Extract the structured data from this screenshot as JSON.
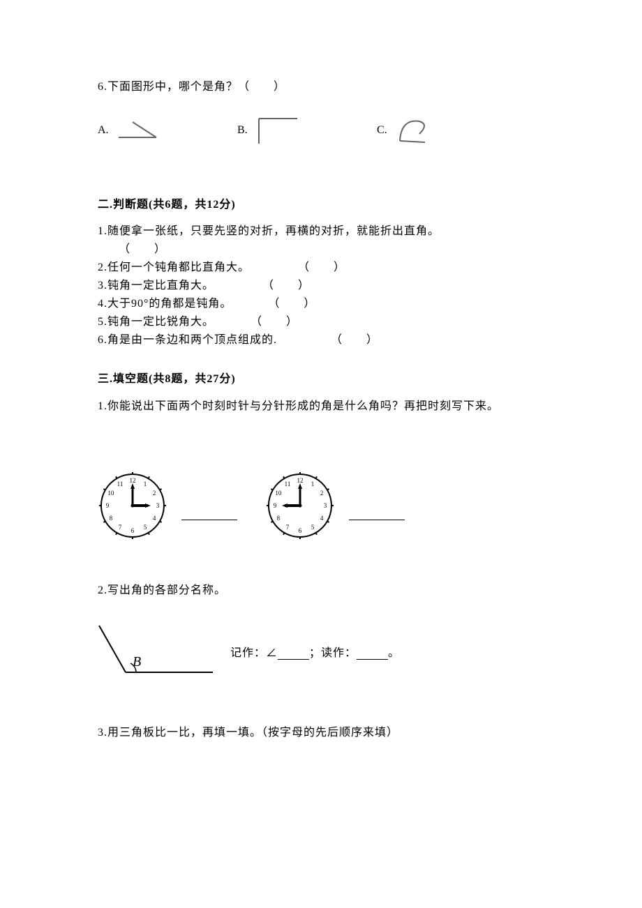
{
  "colors": {
    "text": "#000000",
    "bg": "#ffffff",
    "stroke_light": "#888888"
  },
  "q6": {
    "prompt": "6.下面图形中，哪个是角？（　　）",
    "options": {
      "A": "A.",
      "B": "B.",
      "C": "C."
    }
  },
  "section2": {
    "title": "二.判断题(共6题，共12分)",
    "items": [
      "1.随便拿一张纸，只要先竖的对折，再横的对折，就能折出直角。",
      "      （　　）",
      "2.任何一个钝角都比直角大。　　　　　（　　）",
      "3.钝角一定比直角大。　　　　　（　　）",
      "4.大于90°的角都是钝角。　　　　（　　）",
      "5.钝角一定比锐角大。　　　　（　　）",
      "6.角是由一条边和两个顶点组成的.　　　　　（　　）"
    ]
  },
  "section3": {
    "title": "三.填空题(共8题，共27分)",
    "q1": "1.你能说出下面两个时刻时针与分针形成的角是什么角吗？再把时刻写下来。",
    "q2_title": "2.写出角的各部分名称。",
    "q2_text_pre": "记作：∠",
    "q2_text_mid": "；读作：",
    "q2_text_post": "。",
    "q2_B": "B",
    "q3": "3.用三角板比一比，再填一填。（按字母的先后顺序来填）"
  },
  "clocks": {
    "numbers": [
      "12",
      "1",
      "2",
      "3",
      "4",
      "5",
      "6",
      "7",
      "8",
      "9",
      "10",
      "11"
    ],
    "clock1": {
      "hour_angle": 90,
      "minute_angle": 0
    },
    "clock2": {
      "hour_angle": 270,
      "minute_angle": 0
    }
  }
}
